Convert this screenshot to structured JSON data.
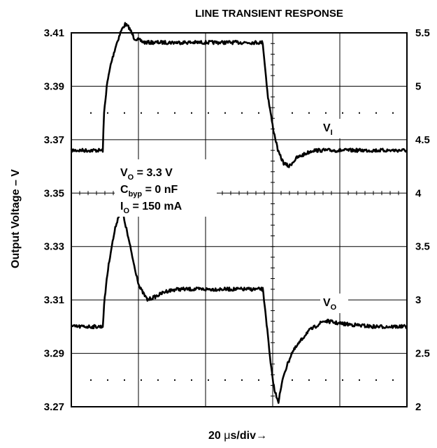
{
  "chart_data": {
    "type": "line",
    "title": "LINE TRANSIENT RESPONSE",
    "ylabel": "Output Voltage – V",
    "xlabel_prefix": "20 ",
    "xlabel_mu": "μ",
    "xlabel_suffix": "s/div→",
    "x_divisions": 10,
    "y_left_ticks": [
      "3.41",
      "3.39",
      "3.37",
      "3.35",
      "3.33",
      "3.31",
      "3.29",
      "3.27"
    ],
    "y_right_ticks": [
      "5.5",
      "5",
      "4.5",
      "4",
      "3.5",
      "3",
      "2.5",
      "2"
    ],
    "ylim_left": [
      3.27,
      3.41
    ],
    "ylim_right": [
      2,
      5.5
    ],
    "grid": true,
    "annotations": {
      "vo_line": {
        "main": "V",
        "sub": "O",
        "rest": " = 3.3 V"
      },
      "cbyp_line": {
        "main": "C",
        "sub": "byp",
        "rest": " = 0 nF"
      },
      "io_line": {
        "main": "I",
        "sub": "O",
        "rest": " = 150 mA"
      }
    },
    "series": [
      {
        "label_main": "V",
        "label_sub": "I",
        "axis": "right",
        "x": [
          0,
          0.6,
          1.2,
          1.25,
          1.35,
          1.5,
          1.7,
          1.9,
          2.05,
          2.2,
          2.4,
          2.8,
          3.5,
          5.0,
          6.5,
          7.0,
          7.3,
          7.4,
          7.5,
          7.7,
          7.9,
          8.1,
          8.3,
          8.6,
          9.2,
          10.0,
          11.5,
          12.8
        ],
        "y": [
          4.4,
          4.4,
          4.4,
          4.75,
          5.0,
          5.2,
          5.38,
          5.52,
          5.58,
          5.55,
          5.45,
          5.41,
          5.41,
          5.41,
          5.41,
          5.41,
          5.41,
          5.15,
          4.9,
          4.6,
          4.38,
          4.28,
          4.25,
          4.33,
          4.4,
          4.4,
          4.4,
          4.4
        ]
      },
      {
        "label_main": "V",
        "label_sub": "O",
        "axis": "right",
        "x": [
          0,
          0.6,
          1.2,
          1.25,
          1.35,
          1.5,
          1.7,
          1.9,
          2.05,
          2.2,
          2.4,
          2.6,
          2.9,
          3.2,
          3.6,
          4.0,
          5.0,
          6.5,
          7.3,
          7.4,
          7.5,
          7.6,
          7.75,
          7.9,
          8.1,
          8.4,
          8.7,
          9.0,
          9.3,
          9.6,
          9.8,
          10.2,
          11.5,
          12.8
        ],
        "y": [
          2.75,
          2.75,
          2.75,
          2.95,
          3.2,
          3.45,
          3.7,
          3.86,
          3.72,
          3.55,
          3.32,
          3.12,
          3.0,
          3.03,
          3.08,
          3.1,
          3.1,
          3.1,
          3.1,
          2.9,
          2.65,
          2.4,
          2.15,
          2.05,
          2.3,
          2.5,
          2.6,
          2.7,
          2.75,
          2.8,
          2.8,
          2.78,
          2.75,
          2.75
        ]
      }
    ]
  }
}
